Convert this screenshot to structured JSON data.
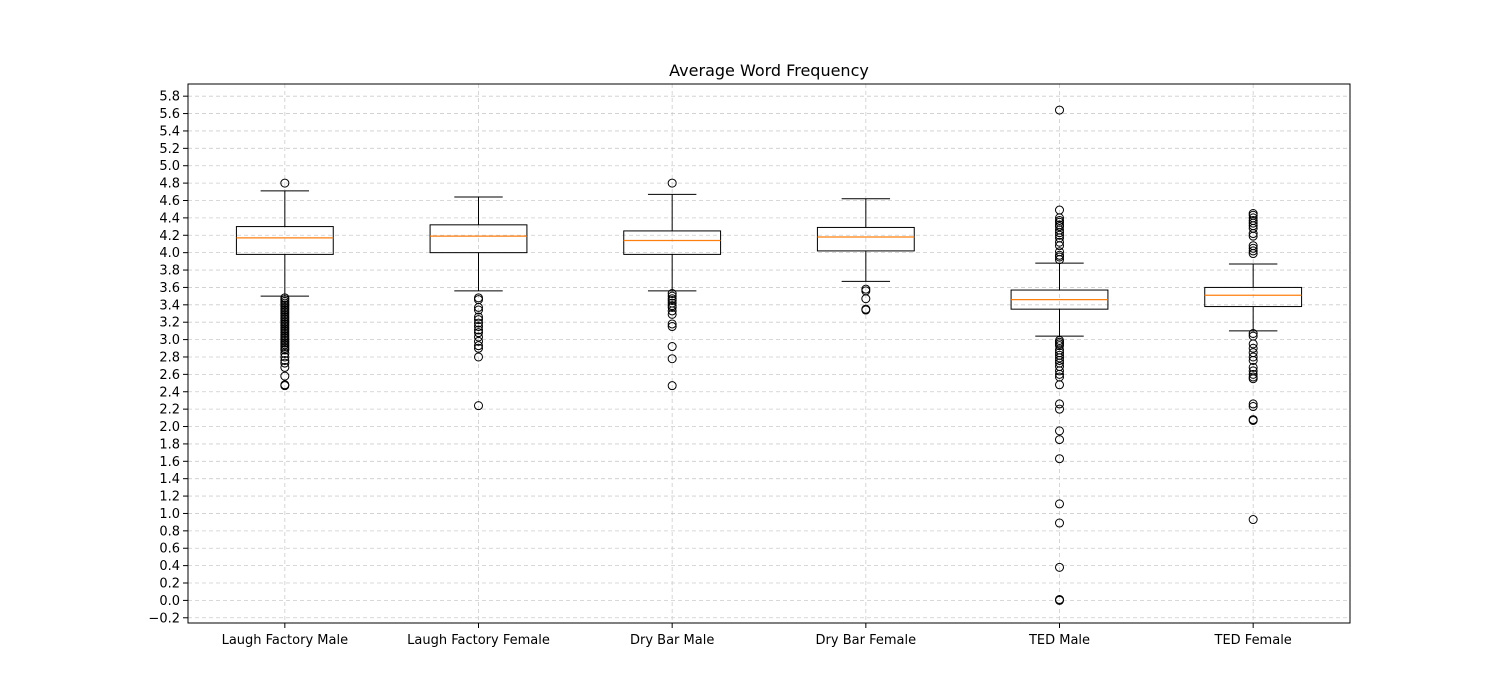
{
  "chart_data": {
    "type": "boxplot",
    "title": "Average Word Frequency",
    "xlabel": "",
    "ylabel": "",
    "ylim": [
      -0.26,
      5.94
    ],
    "yticks": [
      -0.2,
      0.0,
      0.2,
      0.4,
      0.6,
      0.8,
      1.0,
      1.2,
      1.4,
      1.6,
      1.8,
      2.0,
      2.2,
      2.4,
      2.6,
      2.8,
      3.0,
      3.2,
      3.4,
      3.6,
      3.8,
      4.0,
      4.2,
      4.4,
      4.6,
      4.8,
      5.0,
      5.2,
      5.4,
      5.6,
      5.8
    ],
    "grid": true,
    "colors": {
      "box": "#000000",
      "median": "#ff7f0e",
      "grid": "#cccccc"
    },
    "categories": [
      "Laugh Factory Male",
      "Laugh Factory Female",
      "Dry Bar Male",
      "Dry Bar Female",
      "TED Male",
      "TED Female"
    ],
    "boxes": [
      {
        "name": "Laugh Factory Male",
        "whisker_low": 3.5,
        "q1": 3.98,
        "median": 4.17,
        "q3": 4.3,
        "whisker_high": 4.71,
        "outliers": [
          4.8,
          3.48,
          3.46,
          3.44,
          3.42,
          3.4,
          3.38,
          3.36,
          3.34,
          3.32,
          3.3,
          3.28,
          3.26,
          3.24,
          3.22,
          3.2,
          3.18,
          3.16,
          3.14,
          3.12,
          3.1,
          3.08,
          3.06,
          3.04,
          3.02,
          3.0,
          2.98,
          2.96,
          2.94,
          2.92,
          2.9,
          2.88,
          2.84,
          2.8,
          2.76,
          2.73,
          2.68,
          2.58,
          2.48,
          2.47
        ]
      },
      {
        "name": "Laugh Factory Female",
        "whisker_low": 3.56,
        "q1": 4.0,
        "median": 4.19,
        "q3": 4.32,
        "whisker_high": 4.64,
        "outliers": [
          3.48,
          3.46,
          3.37,
          3.34,
          3.26,
          3.23,
          3.19,
          3.15,
          3.11,
          3.08,
          3.03,
          2.98,
          2.93,
          2.9,
          2.8,
          2.24
        ]
      },
      {
        "name": "Dry Bar Male",
        "whisker_low": 3.56,
        "q1": 3.98,
        "median": 4.14,
        "q3": 4.25,
        "whisker_high": 4.67,
        "outliers": [
          4.8,
          3.53,
          3.5,
          3.47,
          3.45,
          3.42,
          3.39,
          3.37,
          3.33,
          3.29,
          3.18,
          3.15,
          2.92,
          2.78,
          2.47
        ]
      },
      {
        "name": "Dry Bar Female",
        "whisker_low": 3.67,
        "q1": 4.02,
        "median": 4.18,
        "q3": 4.29,
        "whisker_high": 4.62,
        "outliers": [
          3.58,
          3.56,
          3.47,
          3.35,
          3.34
        ]
      },
      {
        "name": "TED Male",
        "whisker_low": 3.04,
        "q1": 3.35,
        "median": 3.46,
        "q3": 3.57,
        "whisker_high": 3.88,
        "outliers": [
          5.64,
          4.49,
          4.4,
          4.37,
          4.35,
          4.32,
          4.3,
          4.26,
          4.23,
          4.2,
          4.17,
          4.12,
          4.08,
          4.01,
          3.97,
          3.95,
          3.92,
          2.99,
          2.97,
          2.95,
          2.93,
          2.88,
          2.85,
          2.82,
          2.79,
          2.76,
          2.73,
          2.69,
          2.64,
          2.6,
          2.57,
          2.48,
          2.26,
          2.2,
          1.95,
          1.85,
          1.63,
          1.11,
          0.89,
          0.38,
          0.01,
          0.0
        ]
      },
      {
        "name": "TED Female",
        "whisker_low": 3.1,
        "q1": 3.38,
        "median": 3.51,
        "q3": 3.6,
        "whisker_high": 3.87,
        "outliers": [
          4.45,
          4.43,
          4.4,
          4.37,
          4.34,
          4.31,
          4.28,
          4.22,
          4.19,
          4.08,
          4.05,
          4.02,
          3.99,
          3.07,
          3.04,
          2.95,
          2.9,
          2.85,
          2.8,
          2.76,
          2.68,
          2.64,
          2.6,
          2.57,
          2.55,
          2.26,
          2.23,
          2.08,
          2.07,
          0.93
        ]
      }
    ]
  }
}
